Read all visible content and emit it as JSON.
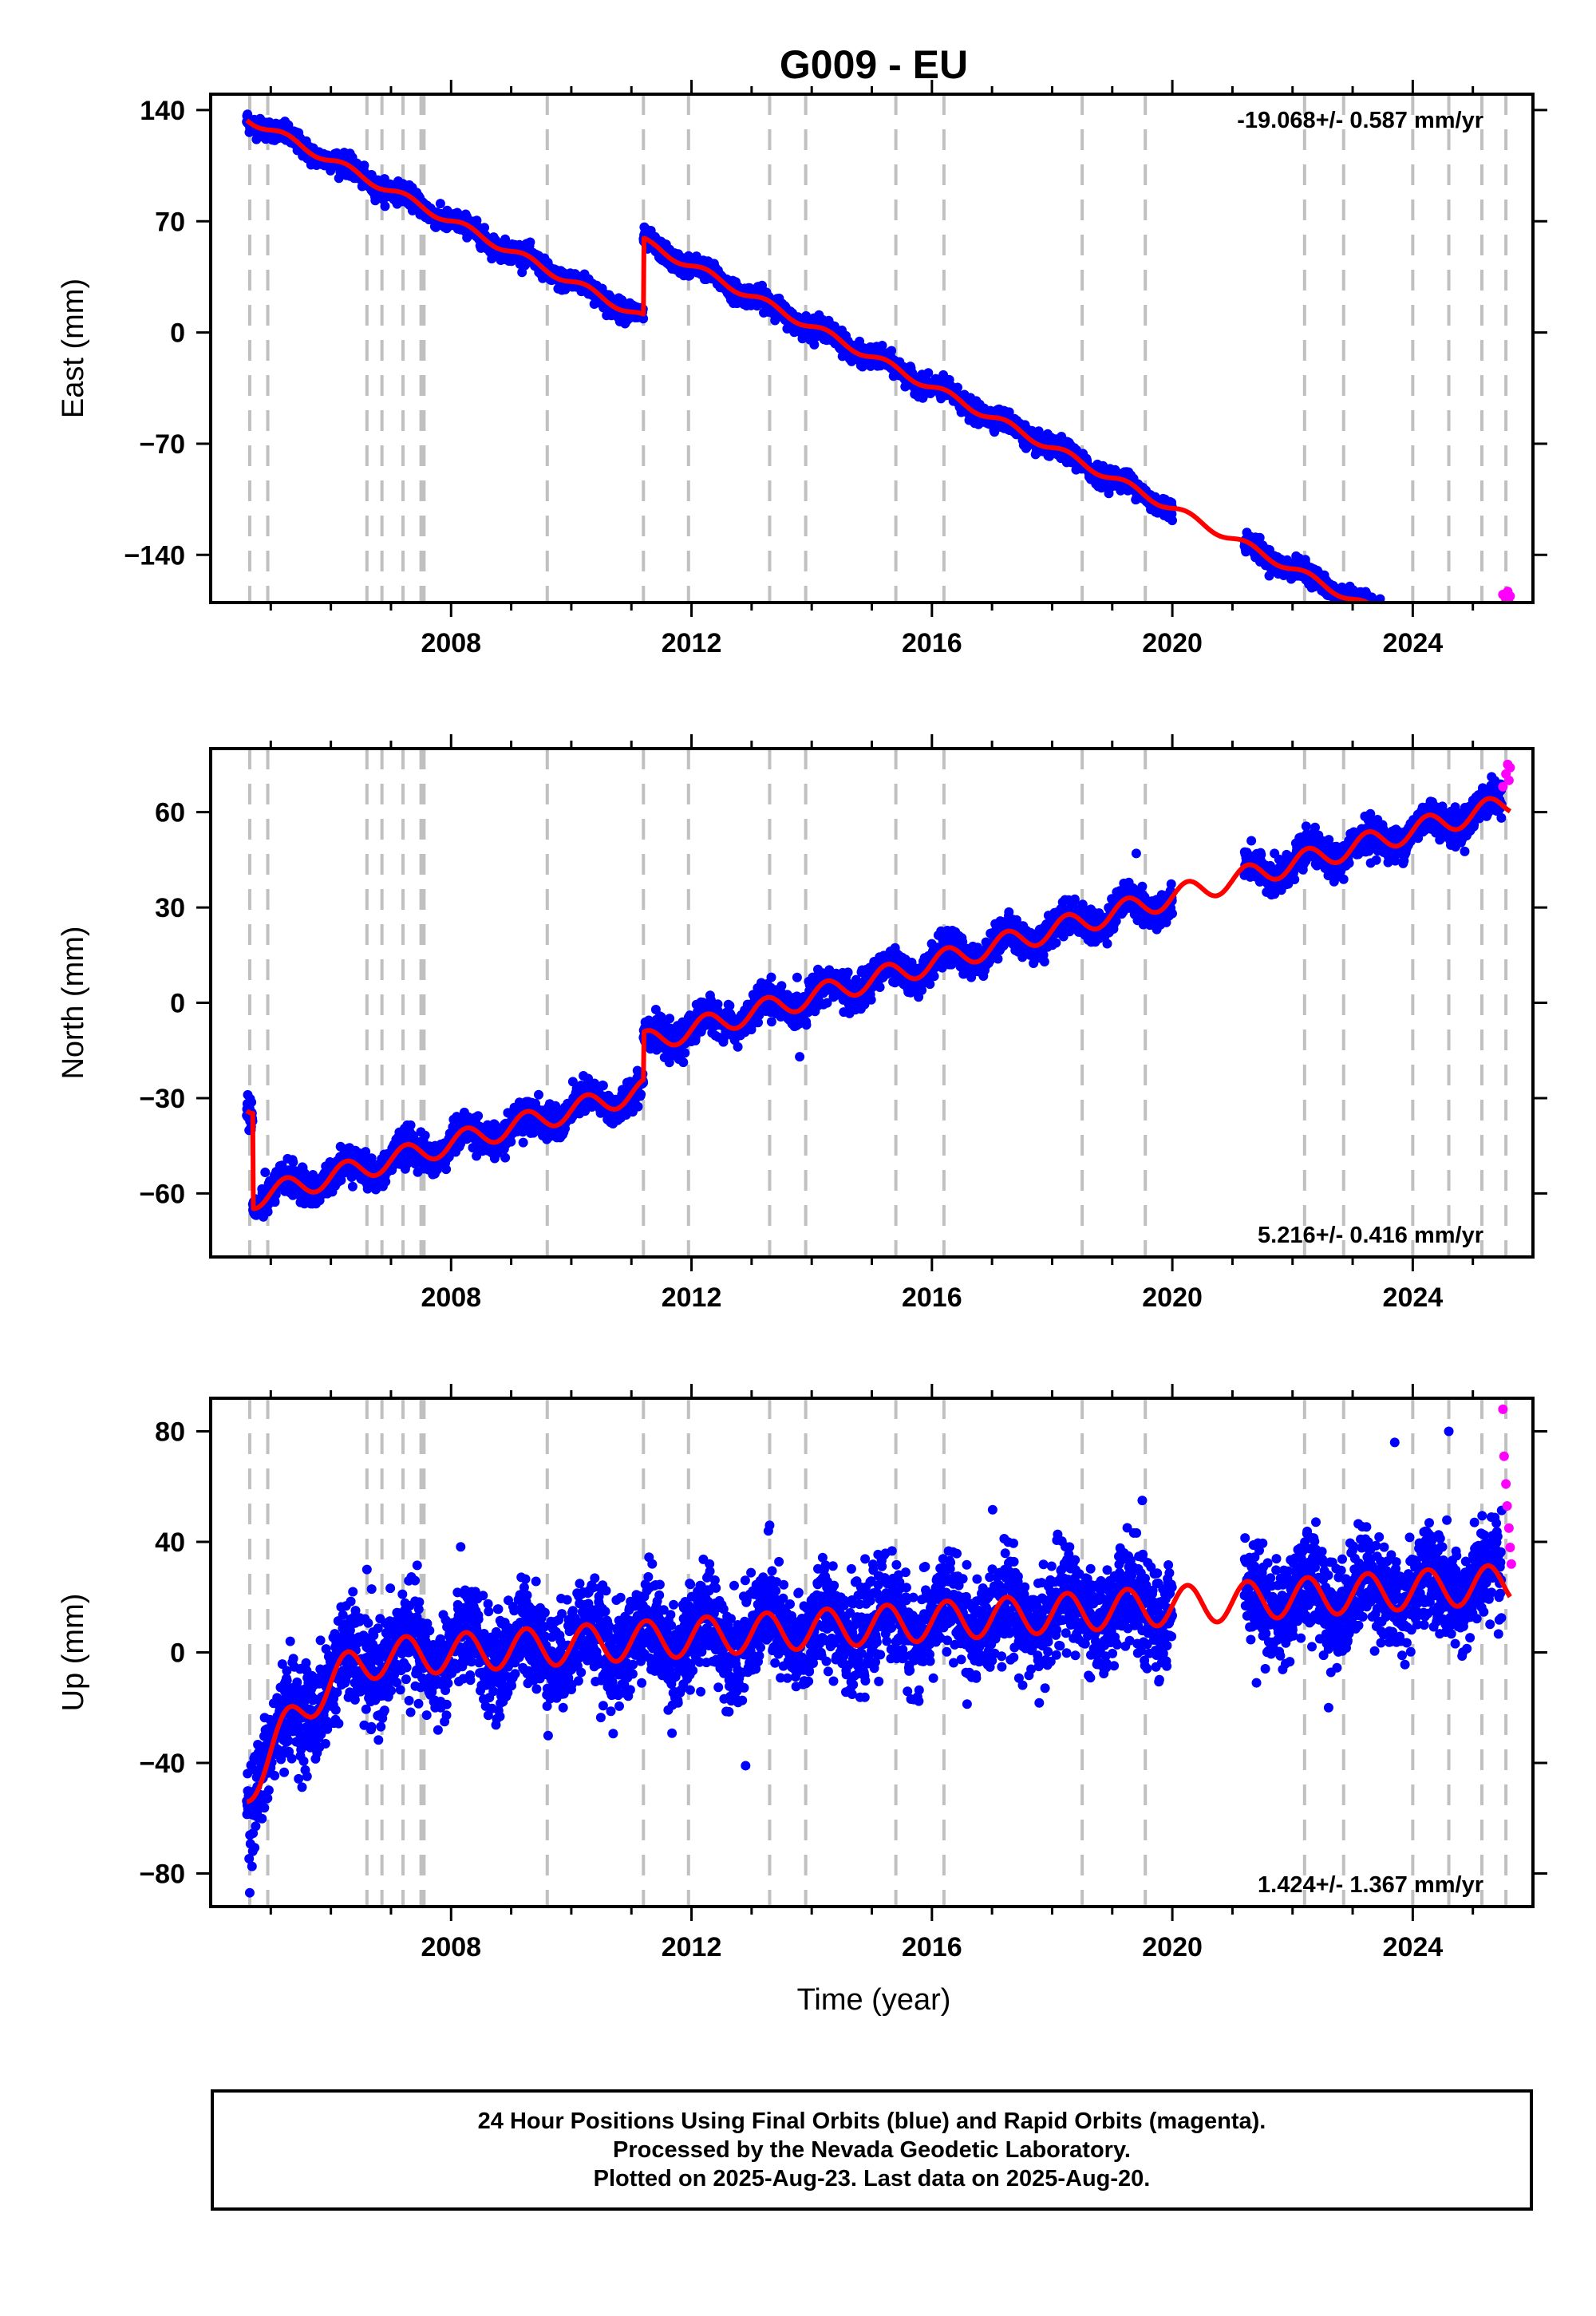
{
  "title": "G009 - EU",
  "xlabel": "Time (year)",
  "footer": {
    "line1": "24 Hour Positions Using Final Orbits (blue) and Rapid Orbits (magenta).",
    "line2": "Processed by the Nevada Geodetic Laboratory.",
    "line3": "Plotted on 2025-Aug-23. Last data on 2025-Aug-20."
  },
  "colors": {
    "final_orbits": "#0000ff",
    "rapid_orbits": "#ff00ff",
    "model": "#ff0000",
    "event_lines": "#c0c0c0"
  },
  "chart_data": [
    {
      "type": "scatter",
      "ylabel": "East (mm)",
      "rate_text": "-19.068+/- 0.587 mm/yr",
      "rate_position": "top-right",
      "xlim": [
        2004.0,
        2026.0
      ],
      "ylim": [
        -170,
        150
      ],
      "xticks": [
        2008,
        2012,
        2016,
        2020,
        2024
      ],
      "yticks": [
        140,
        70,
        0,
        -70,
        -140
      ],
      "ytick_labels": [
        "140",
        "70",
        "0",
        "−70",
        "−140"
      ],
      "grid": false,
      "model": {
        "rate": -19.068,
        "value_at_2004_6": 135,
        "annual_amplitude": 2.5,
        "offsets": [
          {
            "year": 2011.2,
            "jump": 48
          }
        ],
        "gaps": [
          [
            2020.0,
            2021.2
          ]
        ]
      },
      "noise": 3,
      "outliers": [],
      "rapid_points": [
        {
          "x": 2025.5,
          "y": -165
        },
        {
          "x": 2025.55,
          "y": -168
        },
        {
          "x": 2025.58,
          "y": -163
        },
        {
          "x": 2025.6,
          "y": -170
        },
        {
          "x": 2025.62,
          "y": -166
        }
      ]
    },
    {
      "type": "scatter",
      "ylabel": "North (mm)",
      "rate_text": "5.216+/- 0.416 mm/yr",
      "rate_position": "bottom-right",
      "xlim": [
        2004.0,
        2026.0
      ],
      "ylim": [
        -80,
        80
      ],
      "xticks": [
        2008,
        2012,
        2016,
        2020,
        2024
      ],
      "yticks": [
        60,
        30,
        0,
        -30,
        -60
      ],
      "ytick_labels": [
        "60",
        "30",
        "0",
        "−30",
        "−60"
      ],
      "grid": false,
      "model": {
        "rate": 5.216,
        "value_at_2004_6": -32,
        "annual_amplitude": 3.5,
        "offsets": [
          {
            "year": 2004.7,
            "jump": -30
          },
          {
            "year": 2011.2,
            "jump": 15
          }
        ],
        "gaps": [
          [
            2020.0,
            2021.2
          ]
        ]
      },
      "noise": 2.5,
      "outliers": [
        {
          "x": 2009.2,
          "y": -44
        },
        {
          "x": 2019.4,
          "y": 47
        },
        {
          "x": 2023.3,
          "y": 44
        },
        {
          "x": 2021.7,
          "y": 47
        },
        {
          "x": 2013.8,
          "y": -17
        }
      ],
      "rapid_points": [
        {
          "x": 2025.5,
          "y": 68
        },
        {
          "x": 2025.55,
          "y": 72
        },
        {
          "x": 2025.58,
          "y": 75
        },
        {
          "x": 2025.6,
          "y": 70
        },
        {
          "x": 2025.62,
          "y": 74
        }
      ]
    },
    {
      "type": "scatter",
      "ylabel": "Up (mm)",
      "rate_text": "1.424+/- 1.367 mm/yr",
      "rate_position": "bottom-right",
      "xlim": [
        2004.0,
        2026.0
      ],
      "ylim": [
        -92,
        92
      ],
      "xticks": [
        2008,
        2012,
        2016,
        2020,
        2024
      ],
      "yticks": [
        80,
        40,
        0,
        -40,
        -80
      ],
      "ytick_labels": [
        "80",
        "40",
        "0",
        "−40",
        "−80"
      ],
      "grid": false,
      "model": {
        "rate": 1.424,
        "value_at_2004_6": -50,
        "annual_amplitude": 7,
        "offsets": [],
        "transient": {
          "start": 2004.6,
          "end": 2007.0,
          "rise": 45
        },
        "gaps": [
          [
            2020.0,
            2021.2
          ]
        ]
      },
      "noise": 9,
      "outliers": [
        {
          "x": 2006.6,
          "y": 30
        },
        {
          "x": 2007.4,
          "y": 26
        },
        {
          "x": 2012.3,
          "y": 32
        },
        {
          "x": 2013.3,
          "y": 46
        },
        {
          "x": 2019.5,
          "y": 55
        },
        {
          "x": 2023.7,
          "y": 76
        },
        {
          "x": 2024.6,
          "y": 80
        },
        {
          "x": 2021.4,
          "y": -11
        },
        {
          "x": 2022.6,
          "y": -20
        },
        {
          "x": 2004.65,
          "y": -87
        },
        {
          "x": 2004.7,
          "y": -72
        },
        {
          "x": 2012.9,
          "y": -41
        }
      ],
      "rapid_points": [
        {
          "x": 2025.5,
          "y": 88
        },
        {
          "x": 2025.52,
          "y": 71
        },
        {
          "x": 2025.55,
          "y": 61
        },
        {
          "x": 2025.57,
          "y": 53
        },
        {
          "x": 2025.6,
          "y": 45
        },
        {
          "x": 2025.62,
          "y": 38
        },
        {
          "x": 2025.64,
          "y": 32
        }
      ]
    }
  ],
  "event_years": [
    2004.65,
    2004.95,
    2006.6,
    2006.85,
    2007.2,
    2007.5,
    2007.55,
    2009.6,
    2011.2,
    2011.95,
    2013.3,
    2013.9,
    2015.4,
    2016.2,
    2018.5,
    2019.55,
    2022.2,
    2022.85,
    2024.0,
    2024.6,
    2025.15,
    2025.55
  ]
}
